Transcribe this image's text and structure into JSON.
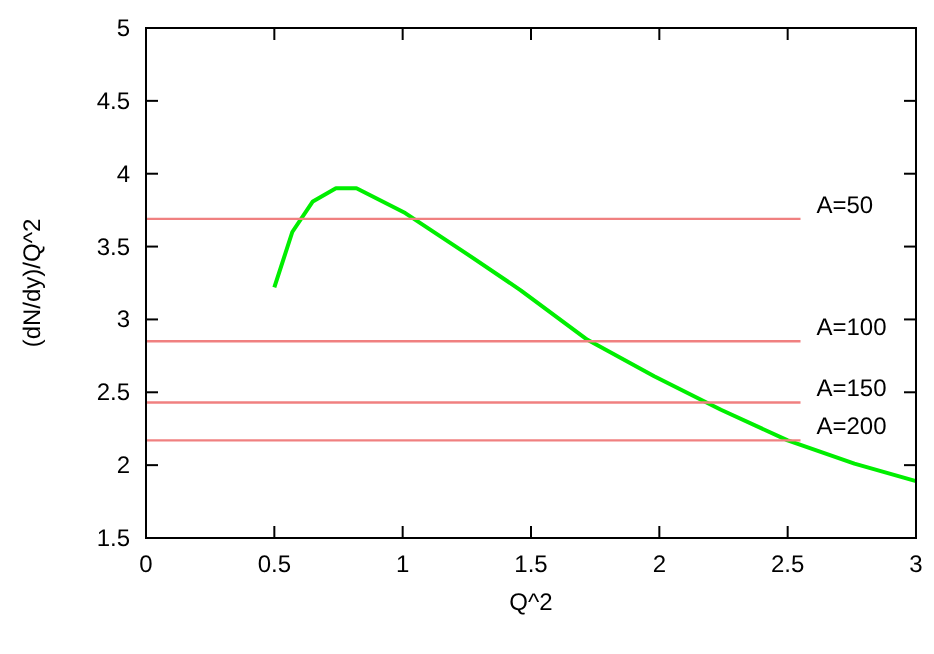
{
  "chart_data": {
    "type": "line",
    "xlabel": "Q^2",
    "ylabel": "(dN/dy)/Q^2",
    "xlim": [
      0,
      3
    ],
    "ylim": [
      1.5,
      5
    ],
    "xticks": [
      0,
      0.5,
      1,
      1.5,
      2,
      2.5,
      3
    ],
    "yticks": [
      1.5,
      2,
      2.5,
      3,
      3.5,
      4,
      4.5,
      5
    ],
    "grid": false,
    "marker": "none",
    "line_style": "solid",
    "series": [
      {
        "color": "#00ee00",
        "x": [
          0.5,
          0.57,
          0.65,
          0.74,
          0.82,
          1.01,
          1.25,
          1.46,
          1.72,
          1.98,
          2.24,
          2.5,
          2.76,
          3.0
        ],
        "values": [
          3.22,
          3.6,
          3.81,
          3.9,
          3.9,
          3.73,
          3.45,
          3.2,
          2.86,
          2.61,
          2.38,
          2.17,
          2.01,
          1.89
        ]
      },
      {
        "name": "A=50",
        "color": "#f08080",
        "x": [
          0,
          2.55
        ],
        "values": [
          3.69,
          3.69
        ]
      },
      {
        "name": "A=100",
        "color": "#f08080",
        "x": [
          0,
          2.55
        ],
        "values": [
          2.85,
          2.85
        ]
      },
      {
        "name": "A=150",
        "color": "#f08080",
        "x": [
          0,
          2.55
        ],
        "values": [
          2.43,
          2.43
        ]
      },
      {
        "name": "A=200",
        "color": "#f08080",
        "x": [
          0,
          2.55
        ],
        "values": [
          2.17,
          2.17
        ]
      }
    ]
  }
}
